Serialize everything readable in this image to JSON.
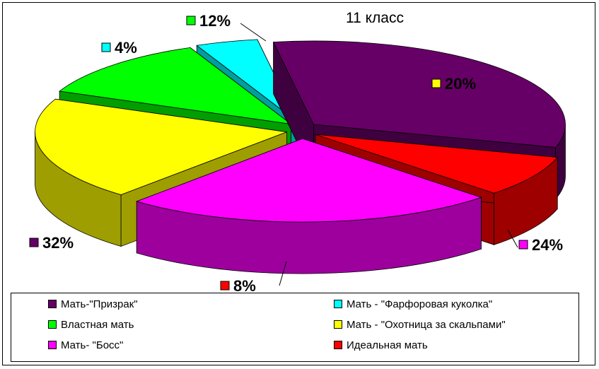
{
  "chart_data": {
    "type": "pie",
    "title": "11 класс",
    "slices": [
      {
        "label": "Мать-\"Призрак\"",
        "value": 32,
        "value_label": "32%",
        "color": "#660066"
      },
      {
        "label": "Мать - \"Фарфоровая куколка\"",
        "value": 4,
        "value_label": "4%",
        "color": "#00FFFF"
      },
      {
        "label": "Властная мать",
        "value": 12,
        "value_label": "12%",
        "color": "#00FF00"
      },
      {
        "label": "Мать - \"Охотница за скальпами\"",
        "value": 20,
        "value_label": "20%",
        "color": "#FFFF00"
      },
      {
        "label": "Мать- \"Босс\"",
        "value": 24,
        "value_label": "24%",
        "color": "#FF00FF"
      },
      {
        "label": "Идеальная мать",
        "value": 8,
        "value_label": "8%",
        "color": "#FF0000"
      }
    ],
    "legend_position": "bottom",
    "style": "3d-exploded"
  }
}
